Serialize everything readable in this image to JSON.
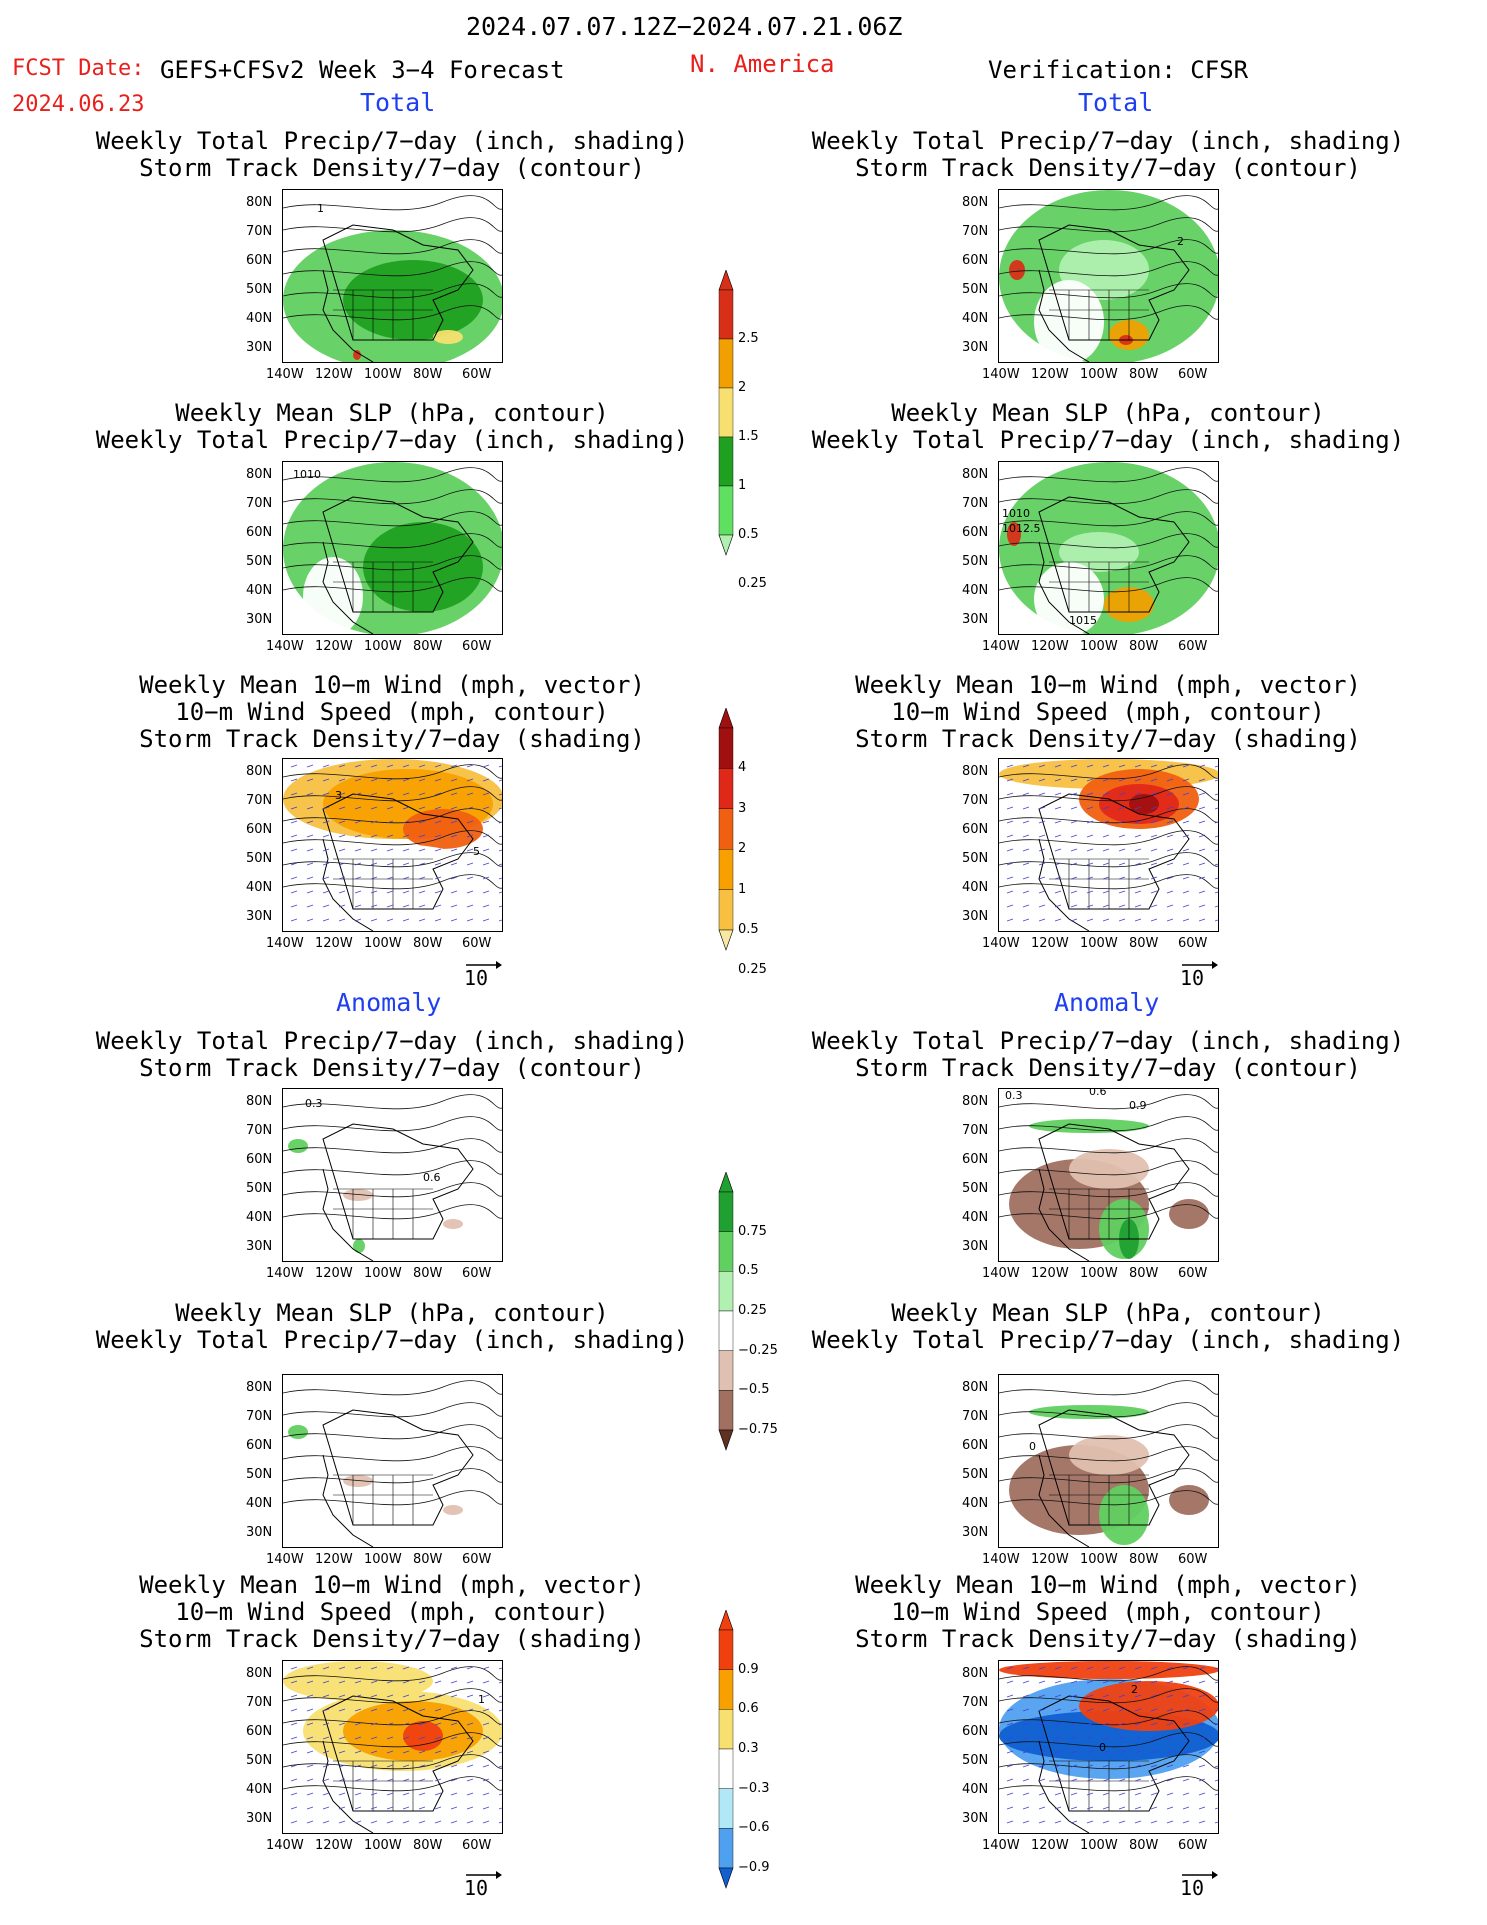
{
  "header": {
    "date_range": "2024.07.07.12Z−2024.07.21.06Z",
    "fcst_label": "FCST Date:",
    "fcst_model": "GEFS+CFSv2 Week 3−4 Forecast",
    "fcst_date": "2024.06.23",
    "region": "N. America",
    "verification": "Verification: CFSR"
  },
  "sections": {
    "total": "Total",
    "anomaly": "Anomaly"
  },
  "titles": {
    "precip_storm": "Weekly Total Precip/7−day (inch, shading)\nStorm Track Density/7−day (contour)",
    "slp_precip": "Weekly Mean SLP (hPa, contour)\nWeekly Total Precip/7−day (inch, shading)",
    "wind_storm": "Weekly Mean 10−m Wind (mph, vector)\n10−m Wind Speed (mph, contour)\nStorm Track Density/7−day (shading)"
  },
  "axes": {
    "lat_ticks": [
      "80N",
      "70N",
      "60N",
      "50N",
      "40N",
      "30N"
    ],
    "lon_ticks": [
      "140W",
      "120W",
      "100W",
      "80W",
      "60W"
    ]
  },
  "vector_ref": "10",
  "colorbars": {
    "total_precip": {
      "labels": [
        "2.5",
        "2",
        "1.5",
        "1",
        "0.5",
        "0.25"
      ],
      "colors": [
        "#d83018",
        "#f0a000",
        "#f8e070",
        "#20a020",
        "#60e060",
        "#b0f0b0"
      ]
    },
    "total_storm": {
      "labels": [
        "4",
        "3",
        "2",
        "1",
        "0.5",
        "0.25"
      ],
      "colors": [
        "#a01010",
        "#e02818",
        "#f06010",
        "#f8a000",
        "#f8c040",
        "#f8e8a0"
      ]
    },
    "anom_precip": {
      "labels": [
        "0.75",
        "0.5",
        "0.25",
        "−0.25",
        "−0.5",
        "−0.75"
      ],
      "colors": [
        "#20a030",
        "#60d060",
        "#b0f0b0",
        "#ffffff",
        "#e0c0b0",
        "#a07060",
        "#603020"
      ]
    },
    "anom_storm": {
      "labels": [
        "0.9",
        "0.6",
        "0.3",
        "−0.3",
        "−0.6",
        "−0.9"
      ],
      "colors": [
        "#f04010",
        "#f8a000",
        "#f8e070",
        "#ffffff",
        "#b0e8f8",
        "#50a0f0",
        "#1060d0"
      ]
    },
    "contour_labels": {
      "storm_total_fcst": "1",
      "storm_total_verif": "2",
      "slp_total_fcst": "1010",
      "slp_total_verif_a": "1010",
      "slp_total_verif_b": "1012.5",
      "slp_total_verif_c": "1015",
      "wind_total_fcst_a": "3",
      "wind_total_fcst_b": "5",
      "storm_anom_fcst_a": "0.3",
      "storm_anom_fcst_b": "0.6",
      "storm_anom_verif_a": "0.3",
      "storm_anom_verif_b": "0.6",
      "storm_anom_verif_c": "0.9",
      "slp_anom_verif": "0",
      "wind_anom_fcst": "1",
      "wind_anom_verif_a": "2",
      "wind_anom_verif_b": "0"
    }
  }
}
